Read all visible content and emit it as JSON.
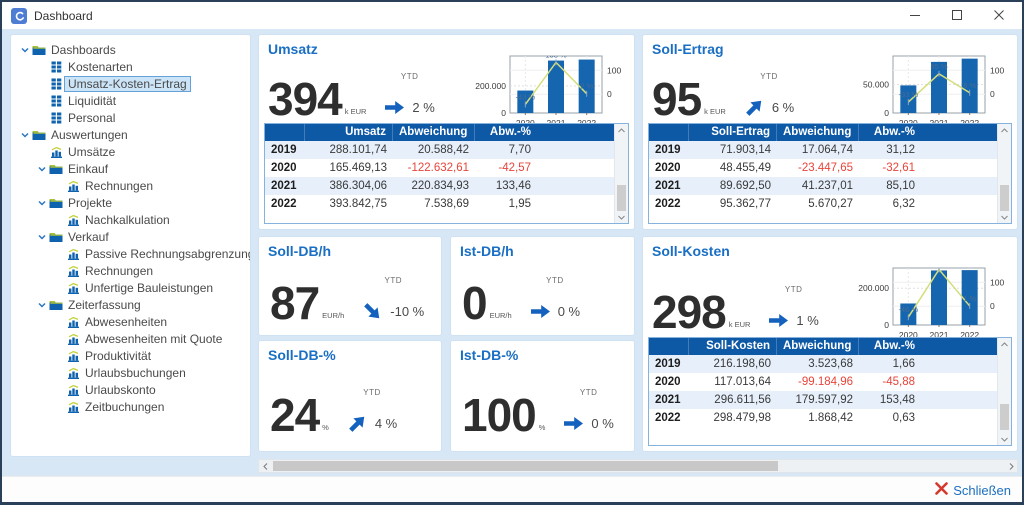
{
  "window": {
    "title": "Dashboard"
  },
  "labels": {
    "ytd": "YTD"
  },
  "colors": {
    "accent_blue": "#1a6fc4",
    "table_header_blue": "#0e59a6",
    "bar_blue": "#1565af",
    "line_yellow": "#d4de7a",
    "negative_red": "#e8443a",
    "client_background": "#d7e7f6",
    "close_red": "#d23a2e"
  },
  "sidebar": {
    "items": [
      {
        "label": "Dashboards",
        "level": 0,
        "icon": "folder",
        "expanded": true,
        "selected": false
      },
      {
        "label": "Kostenarten",
        "level": 1,
        "icon": "grid",
        "selected": false
      },
      {
        "label": "Umsatz-Kosten-Ertrag",
        "level": 1,
        "icon": "grid",
        "selected": true
      },
      {
        "label": "Liquidität",
        "level": 1,
        "icon": "grid",
        "selected": false
      },
      {
        "label": "Personal",
        "level": 1,
        "icon": "grid",
        "selected": false
      },
      {
        "label": "Auswertungen",
        "level": 0,
        "icon": "folder",
        "expanded": true,
        "selected": false
      },
      {
        "label": "Umsätze",
        "level": 1,
        "icon": "chart",
        "selected": false
      },
      {
        "label": "Einkauf",
        "level": 1,
        "icon": "folder",
        "expanded": true,
        "selected": false
      },
      {
        "label": "Rechnungen",
        "level": 2,
        "icon": "chart",
        "selected": false
      },
      {
        "label": "Projekte",
        "level": 1,
        "icon": "folder",
        "expanded": true,
        "selected": false
      },
      {
        "label": "Nachkalkulation",
        "level": 2,
        "icon": "chart",
        "selected": false
      },
      {
        "label": "Verkauf",
        "level": 1,
        "icon": "folder",
        "expanded": true,
        "selected": false
      },
      {
        "label": "Passive Rechnungsabgrenzung",
        "level": 2,
        "icon": "chart",
        "selected": false
      },
      {
        "label": "Rechnungen",
        "level": 2,
        "icon": "chart",
        "selected": false
      },
      {
        "label": "Unfertige Bauleistungen",
        "level": 2,
        "icon": "chart",
        "selected": false
      },
      {
        "label": "Zeiterfassung",
        "level": 1,
        "icon": "folder",
        "expanded": true,
        "selected": false
      },
      {
        "label": "Abwesenheiten",
        "level": 2,
        "icon": "chart",
        "selected": false
      },
      {
        "label": "Abwesenheiten mit Quote",
        "level": 2,
        "icon": "chart",
        "selected": false
      },
      {
        "label": "Produktivität",
        "level": 2,
        "icon": "chart",
        "selected": false
      },
      {
        "label": "Urlaubsbuchungen",
        "level": 2,
        "icon": "chart",
        "selected": false
      },
      {
        "label": "Urlaubskonto",
        "level": 2,
        "icon": "chart",
        "selected": false
      },
      {
        "label": "Zeitbuchungen",
        "level": 2,
        "icon": "chart",
        "selected": false
      }
    ]
  },
  "panels": {
    "umsatz": {
      "title": "Umsatz",
      "value": "394",
      "unit": "k EUR",
      "trend": "flat",
      "trend_pct": "2 %",
      "mini_chart": {
        "type": "bar",
        "years": [
          "2020",
          "2021",
          "2022"
        ],
        "bar_values": [
          165469,
          386304,
          393843
        ],
        "bar_axis_max": 420000,
        "left_ticks": [
          {
            "label": "200.000",
            "value": 200000
          },
          {
            "label": "0",
            "value": 0
          }
        ],
        "right_ticks": [
          {
            "label": "100",
            "pct": 100
          },
          {
            "label": "0",
            "pct": 0
          }
        ],
        "line_pcts": [
          -43,
          133,
          2
        ],
        "line_labels": [
          "-43 %",
          "133 %",
          "2 %"
        ]
      },
      "table": {
        "headers": [
          "",
          "Umsatz",
          "Abweichung",
          "Abw.-%"
        ],
        "rows": [
          [
            "2019",
            "288.101,74",
            "20.588,42",
            "7,70"
          ],
          [
            "2020",
            "165.469,13",
            "-122.632,61",
            "-42,57"
          ],
          [
            "2021",
            "386.304,06",
            "220.834,93",
            "133,46"
          ],
          [
            "2022",
            "393.842,75",
            "7.538,69",
            "1,95"
          ]
        ]
      }
    },
    "soll_ertrag": {
      "title": "Soll-Ertrag",
      "value": "95",
      "unit": "k EUR",
      "trend": "up",
      "trend_pct": "6 %",
      "mini_chart": {
        "type": "bar",
        "years": [
          "2020",
          "2021",
          "2022"
        ],
        "bar_values": [
          48455,
          89693,
          95363
        ],
        "bar_axis_max": 100000,
        "left_ticks": [
          {
            "label": "50.000",
            "value": 50000
          },
          {
            "label": "0",
            "value": 0
          }
        ],
        "right_ticks": [
          {
            "label": "100",
            "pct": 100
          },
          {
            "label": "0",
            "pct": 0
          }
        ],
        "line_pcts": [
          -33,
          85,
          6
        ],
        "line_labels": [
          "-33 %",
          "85 %",
          "6 %"
        ]
      },
      "table": {
        "headers": [
          "",
          "Soll-Ertrag",
          "Abweichung",
          "Abw.-%"
        ],
        "rows": [
          [
            "2019",
            "71.903,14",
            "17.064,74",
            "31,12"
          ],
          [
            "2020",
            "48.455,49",
            "-23.447,65",
            "-32,61"
          ],
          [
            "2021",
            "89.692,50",
            "41.237,01",
            "85,10"
          ],
          [
            "2022",
            "95.362,77",
            "5.670,27",
            "6,32"
          ]
        ]
      }
    },
    "soll_db_h": {
      "title": "Soll-DB/h",
      "value": "87",
      "unit": "EUR/h",
      "trend": "down",
      "trend_pct": "-10 %"
    },
    "ist_db_h": {
      "title": "Ist-DB/h",
      "value": "0",
      "unit": "EUR/h",
      "trend": "flat",
      "trend_pct": "0 %"
    },
    "soll_db_pct": {
      "title": "Soll-DB-%",
      "value": "24",
      "unit": "%",
      "trend": "up",
      "trend_pct": "4 %"
    },
    "ist_db_pct": {
      "title": "Ist-DB-%",
      "value": "100",
      "unit": "%",
      "trend": "flat",
      "trend_pct": "0 %"
    },
    "soll_kosten": {
      "title": "Soll-Kosten",
      "value": "298",
      "unit": "k EUR",
      "trend": "flat",
      "trend_pct": "1 %",
      "mini_chart": {
        "type": "bar",
        "years": [
          "2020",
          "2021",
          "2022"
        ],
        "bar_values": [
          117014,
          296612,
          298480
        ],
        "bar_axis_max": 310000,
        "left_ticks": [
          {
            "label": "200.000",
            "value": 200000
          },
          {
            "label": "0",
            "value": 0
          }
        ],
        "right_ticks": [
          {
            "label": "100",
            "pct": 100
          },
          {
            "label": "0",
            "pct": 0
          }
        ],
        "line_pcts": [
          -46,
          153,
          1
        ],
        "line_labels": [
          "-46 %",
          "153 %",
          "1 %"
        ]
      },
      "table": {
        "headers": [
          "",
          "Soll-Kosten",
          "Abweichung",
          "Abw.-%"
        ],
        "rows": [
          [
            "2019",
            "216.198,60",
            "3.523,68",
            "1,66"
          ],
          [
            "2020",
            "117.013,64",
            "-99.184,96",
            "-45,88"
          ],
          [
            "2021",
            "296.611,56",
            "179.597,92",
            "153,48"
          ],
          [
            "2022",
            "298.479,98",
            "1.868,42",
            "0,63"
          ]
        ]
      }
    }
  },
  "footer": {
    "close_label": "Schließen"
  }
}
